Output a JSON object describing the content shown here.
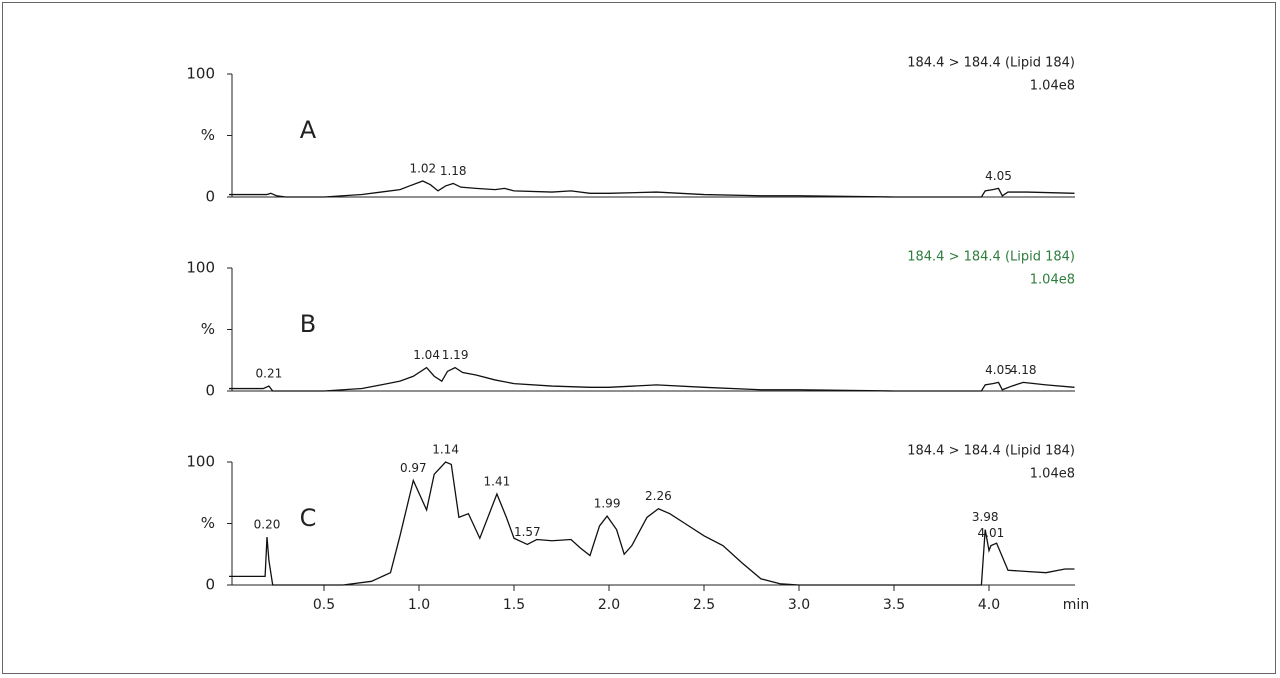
{
  "chart_data": [
    {
      "type": "line",
      "label": "A",
      "annotation": [
        "184.4 > 184.4 (Lipid 184)",
        "1.04e8"
      ],
      "annotation_color": "#222222",
      "xlim": [
        0,
        4.45
      ],
      "ylim": [
        0,
        100
      ],
      "yticks": [
        0,
        {
          "value": 50,
          "label": "%"
        },
        100
      ],
      "x": [
        0,
        0.2,
        0.22,
        0.25,
        0.3,
        0.5,
        0.6,
        0.7,
        0.8,
        0.9,
        0.95,
        1.02,
        1.06,
        1.1,
        1.14,
        1.18,
        1.22,
        1.3,
        1.4,
        1.45,
        1.5,
        1.7,
        1.8,
        1.9,
        2.0,
        2.25,
        2.5,
        2.8,
        3.0,
        3.5,
        3.9,
        3.96,
        3.98,
        4.02,
        4.05,
        4.07,
        4.1,
        4.2,
        4.45
      ],
      "series": [
        {
          "color": "#111111",
          "values": [
            2,
            2,
            3,
            1,
            0,
            0,
            1,
            2,
            4,
            6,
            9,
            13,
            10,
            5,
            9,
            11,
            8,
            7,
            6,
            7,
            5,
            4,
            5,
            3,
            3,
            4,
            2,
            1,
            1,
            0,
            0,
            0,
            5,
            6,
            7,
            1,
            4,
            4,
            3
          ]
        }
      ],
      "peaks": [
        1.02,
        1.18,
        4.05
      ]
    },
    {
      "type": "line",
      "label": "B",
      "annotation": [
        "184.4 > 184.4 (Lipid 184)",
        "1.04e8"
      ],
      "annotation_color": "#2e7d3e",
      "xlim": [
        0,
        4.45
      ],
      "ylim": [
        0,
        100
      ],
      "yticks": [
        0,
        {
          "value": 50,
          "label": "%"
        },
        100
      ],
      "x": [
        0,
        0.18,
        0.21,
        0.23,
        0.3,
        0.5,
        0.6,
        0.7,
        0.8,
        0.9,
        0.97,
        1.04,
        1.08,
        1.12,
        1.15,
        1.19,
        1.23,
        1.3,
        1.4,
        1.5,
        1.7,
        1.9,
        2.0,
        2.25,
        2.5,
        2.8,
        3.0,
        3.5,
        3.9,
        3.96,
        3.98,
        4.02,
        4.05,
        4.07,
        4.12,
        4.18,
        4.3,
        4.45
      ],
      "series": [
        {
          "color": "#111111",
          "values": [
            2,
            2,
            4,
            0,
            0,
            0,
            1,
            2,
            5,
            8,
            12,
            19,
            12,
            8,
            16,
            19,
            15,
            13,
            9,
            6,
            4,
            3,
            3,
            5,
            3,
            1,
            1,
            0,
            0,
            0,
            5,
            6,
            7,
            1,
            4,
            7,
            5,
            3
          ]
        }
      ],
      "peaks": [
        0.21,
        1.04,
        1.19,
        4.05,
        4.18
      ]
    },
    {
      "type": "line",
      "label": "C",
      "annotation": [
        "184.4 > 184.4 (Lipid 184)",
        "1.04e8"
      ],
      "annotation_color": "#222222",
      "xlim": [
        0,
        4.45
      ],
      "ylim": [
        0,
        100
      ],
      "yticks": [
        0,
        {
          "value": 50,
          "label": "%"
        },
        100
      ],
      "xticks": [
        0.5,
        {
          "value": 1,
          "label": "1.0"
        },
        1.5,
        {
          "value": 2,
          "label": "2.0"
        },
        2.5,
        {
          "value": 3,
          "label": "3.0"
        },
        3.5,
        {
          "value": 4,
          "label": "4.0"
        }
      ],
      "xlabel": "min",
      "x": [
        0,
        0.19,
        0.2,
        0.21,
        0.23,
        0.3,
        0.6,
        0.75,
        0.85,
        0.9,
        0.97,
        1.04,
        1.08,
        1.14,
        1.17,
        1.21,
        1.26,
        1.32,
        1.41,
        1.46,
        1.5,
        1.57,
        1.62,
        1.7,
        1.8,
        1.85,
        1.9,
        1.95,
        1.99,
        2.04,
        2.08,
        2.12,
        2.2,
        2.26,
        2.32,
        2.4,
        2.5,
        2.6,
        2.7,
        2.8,
        2.9,
        3.0,
        3.9,
        3.96,
        3.98,
        4.0,
        4.01,
        4.04,
        4.1,
        4.2,
        4.3,
        4.4,
        4.45
      ],
      "series": [
        {
          "color": "#111111",
          "values": [
            7,
            7,
            39,
            20,
            0,
            0,
            0,
            3,
            10,
            40,
            85,
            61,
            90,
            100,
            98,
            55,
            58,
            38,
            74,
            55,
            38,
            33,
            37,
            36,
            37,
            30,
            24,
            48,
            56,
            45,
            25,
            32,
            55,
            62,
            58,
            50,
            40,
            32,
            18,
            5,
            1,
            0,
            0,
            0,
            45,
            28,
            32,
            34,
            12,
            11,
            10,
            13,
            13
          ]
        }
      ],
      "peaks": [
        {
          "value": 0.2,
          "label": "0.20"
        },
        0.97,
        1.14,
        1.41,
        1.57,
        1.99,
        2.26,
        3.98,
        4.01
      ]
    }
  ]
}
